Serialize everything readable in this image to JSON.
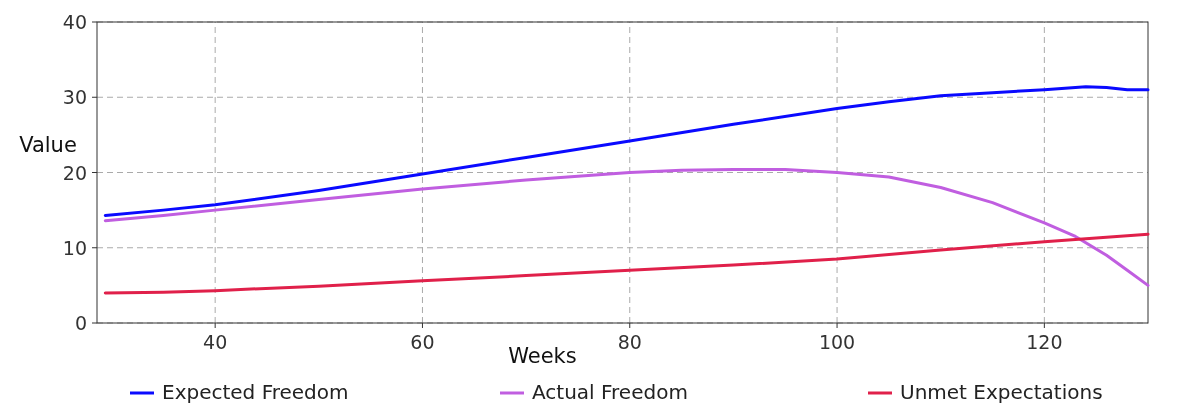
{
  "chart_data": {
    "type": "line",
    "xlabel": "Weeks",
    "ylabel": "Value",
    "xlim": [
      28.6,
      130
    ],
    "ylim": [
      0,
      40
    ],
    "xticks": [
      40,
      60,
      80,
      100,
      120
    ],
    "yticks": [
      0,
      10,
      20,
      30,
      40
    ],
    "grid": true,
    "legend": "bottom",
    "marker": "none",
    "line_style": "solid",
    "series": [
      {
        "name": "Expected Freedom",
        "color": "#0a0aff",
        "x": [
          29.4,
          35,
          40,
          50,
          60,
          70,
          80,
          90,
          100,
          105,
          110,
          115,
          120,
          124,
          126,
          128,
          130
        ],
        "values": [
          14.3,
          15,
          15.7,
          17.6,
          19.8,
          22,
          24.2,
          26.4,
          28.5,
          29.4,
          30.2,
          30.6,
          31,
          31.4,
          31.3,
          31,
          31
        ]
      },
      {
        "name": "Actual Freedom",
        "color": "#c05ee0",
        "x": [
          29.4,
          35,
          40,
          50,
          60,
          70,
          80,
          85,
          90,
          95,
          100,
          105,
          110,
          115,
          120,
          123,
          126,
          128,
          130
        ],
        "values": [
          13.6,
          14.3,
          15,
          16.4,
          17.8,
          19,
          20,
          20.3,
          20.4,
          20.4,
          20,
          19.4,
          18,
          16,
          13.3,
          11.5,
          9,
          7,
          5
        ]
      },
      {
        "name": "Unmet Expectations",
        "color": "#e0204a",
        "x": [
          29.4,
          35,
          40,
          50,
          60,
          70,
          80,
          90,
          100,
          110,
          120,
          125,
          130
        ],
        "values": [
          4,
          4.1,
          4.3,
          4.9,
          5.6,
          6.3,
          7,
          7.7,
          8.5,
          9.7,
          10.8,
          11.3,
          11.8
        ]
      }
    ]
  }
}
